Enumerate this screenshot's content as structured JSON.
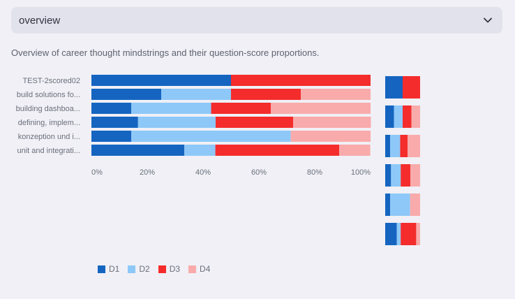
{
  "select": {
    "value": "overview",
    "icon": "chevron-down-icon"
  },
  "caption": "Overview of career thought mindstrings and their question-score proportions.",
  "colors": {
    "D1": "#1565c0",
    "D2": "#8ec8f8",
    "D3": "#f42c2c",
    "D4": "#f9abab"
  },
  "chart_data": [
    {
      "type": "bar",
      "orientation": "horizontal",
      "stacked": true,
      "normalized": true,
      "categories": [
        "TEST-2scored02",
        "build solutions fo...",
        "building dashboa...",
        "defining, implem...",
        "konzeption und i...",
        "unit and integrati..."
      ],
      "series": [
        {
          "name": "D1",
          "values": [
            0.5,
            0.25,
            0.143,
            0.167,
            0.143,
            0.333
          ]
        },
        {
          "name": "D2",
          "values": [
            0.0,
            0.25,
            0.286,
            0.278,
            0.571,
            0.111
          ]
        },
        {
          "name": "D3",
          "values": [
            0.5,
            0.25,
            0.214,
            0.278,
            0.0,
            0.444
          ]
        },
        {
          "name": "D4",
          "values": [
            0.0,
            0.25,
            0.357,
            0.278,
            0.286,
            0.111
          ]
        }
      ],
      "xlim": [
        0,
        1
      ],
      "x_tick_labels": [
        "0%",
        "20%",
        "40%",
        "60%",
        "80%",
        "100%"
      ],
      "legend_position": "bottom-left"
    },
    {
      "type": "bar",
      "orientation": "horizontal",
      "stacked": true,
      "normalized": true,
      "categories": [
        "TEST-2scored02",
        "build solutions fo...",
        "building dashboa...",
        "defining, implem...",
        "konzeption und i...",
        "unit and integrati..."
      ],
      "series": [
        {
          "name": "D1",
          "values": [
            0.5,
            0.25,
            0.143,
            0.167,
            0.143,
            0.333
          ]
        },
        {
          "name": "D2",
          "values": [
            0.0,
            0.25,
            0.286,
            0.278,
            0.571,
            0.111
          ]
        },
        {
          "name": "D3",
          "values": [
            0.5,
            0.25,
            0.214,
            0.278,
            0.0,
            0.444
          ]
        },
        {
          "name": "D4",
          "values": [
            0.0,
            0.25,
            0.357,
            0.278,
            0.286,
            0.111
          ]
        }
      ],
      "xlim": [
        0,
        1
      ]
    }
  ]
}
